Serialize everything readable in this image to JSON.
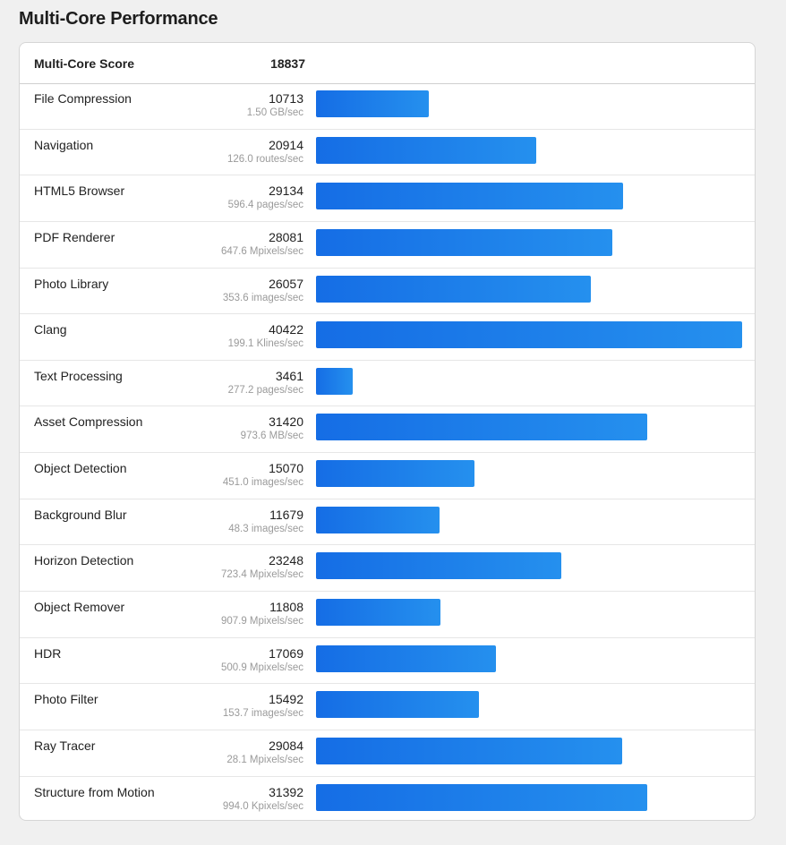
{
  "page": {
    "title": "Multi-Core Performance"
  },
  "header": {
    "label": "Multi-Core Score",
    "score": "18837"
  },
  "colors": {
    "bar_start": "#156de5",
    "bar_end": "#2590ee"
  },
  "chart_data": {
    "type": "bar",
    "orientation": "horizontal",
    "max_value": 40422,
    "rows": [
      {
        "name": "File Compression",
        "score": 10713,
        "rate": "1.50 GB/sec"
      },
      {
        "name": "Navigation",
        "score": 20914,
        "rate": "126.0 routes/sec"
      },
      {
        "name": "HTML5 Browser",
        "score": 29134,
        "rate": "596.4 pages/sec"
      },
      {
        "name": "PDF Renderer",
        "score": 28081,
        "rate": "647.6 Mpixels/sec"
      },
      {
        "name": "Photo Library",
        "score": 26057,
        "rate": "353.6 images/sec"
      },
      {
        "name": "Clang",
        "score": 40422,
        "rate": "199.1 Klines/sec"
      },
      {
        "name": "Text Processing",
        "score": 3461,
        "rate": "277.2 pages/sec"
      },
      {
        "name": "Asset Compression",
        "score": 31420,
        "rate": "973.6 MB/sec"
      },
      {
        "name": "Object Detection",
        "score": 15070,
        "rate": "451.0 images/sec"
      },
      {
        "name": "Background Blur",
        "score": 11679,
        "rate": "48.3 images/sec"
      },
      {
        "name": "Horizon Detection",
        "score": 23248,
        "rate": "723.4 Mpixels/sec"
      },
      {
        "name": "Object Remover",
        "score": 11808,
        "rate": "907.9 Mpixels/sec"
      },
      {
        "name": "HDR",
        "score": 17069,
        "rate": "500.9 Mpixels/sec"
      },
      {
        "name": "Photo Filter",
        "score": 15492,
        "rate": "153.7 images/sec"
      },
      {
        "name": "Ray Tracer",
        "score": 29084,
        "rate": "28.1 Mpixels/sec"
      },
      {
        "name": "Structure from Motion",
        "score": 31392,
        "rate": "994.0 Kpixels/sec"
      }
    ]
  }
}
